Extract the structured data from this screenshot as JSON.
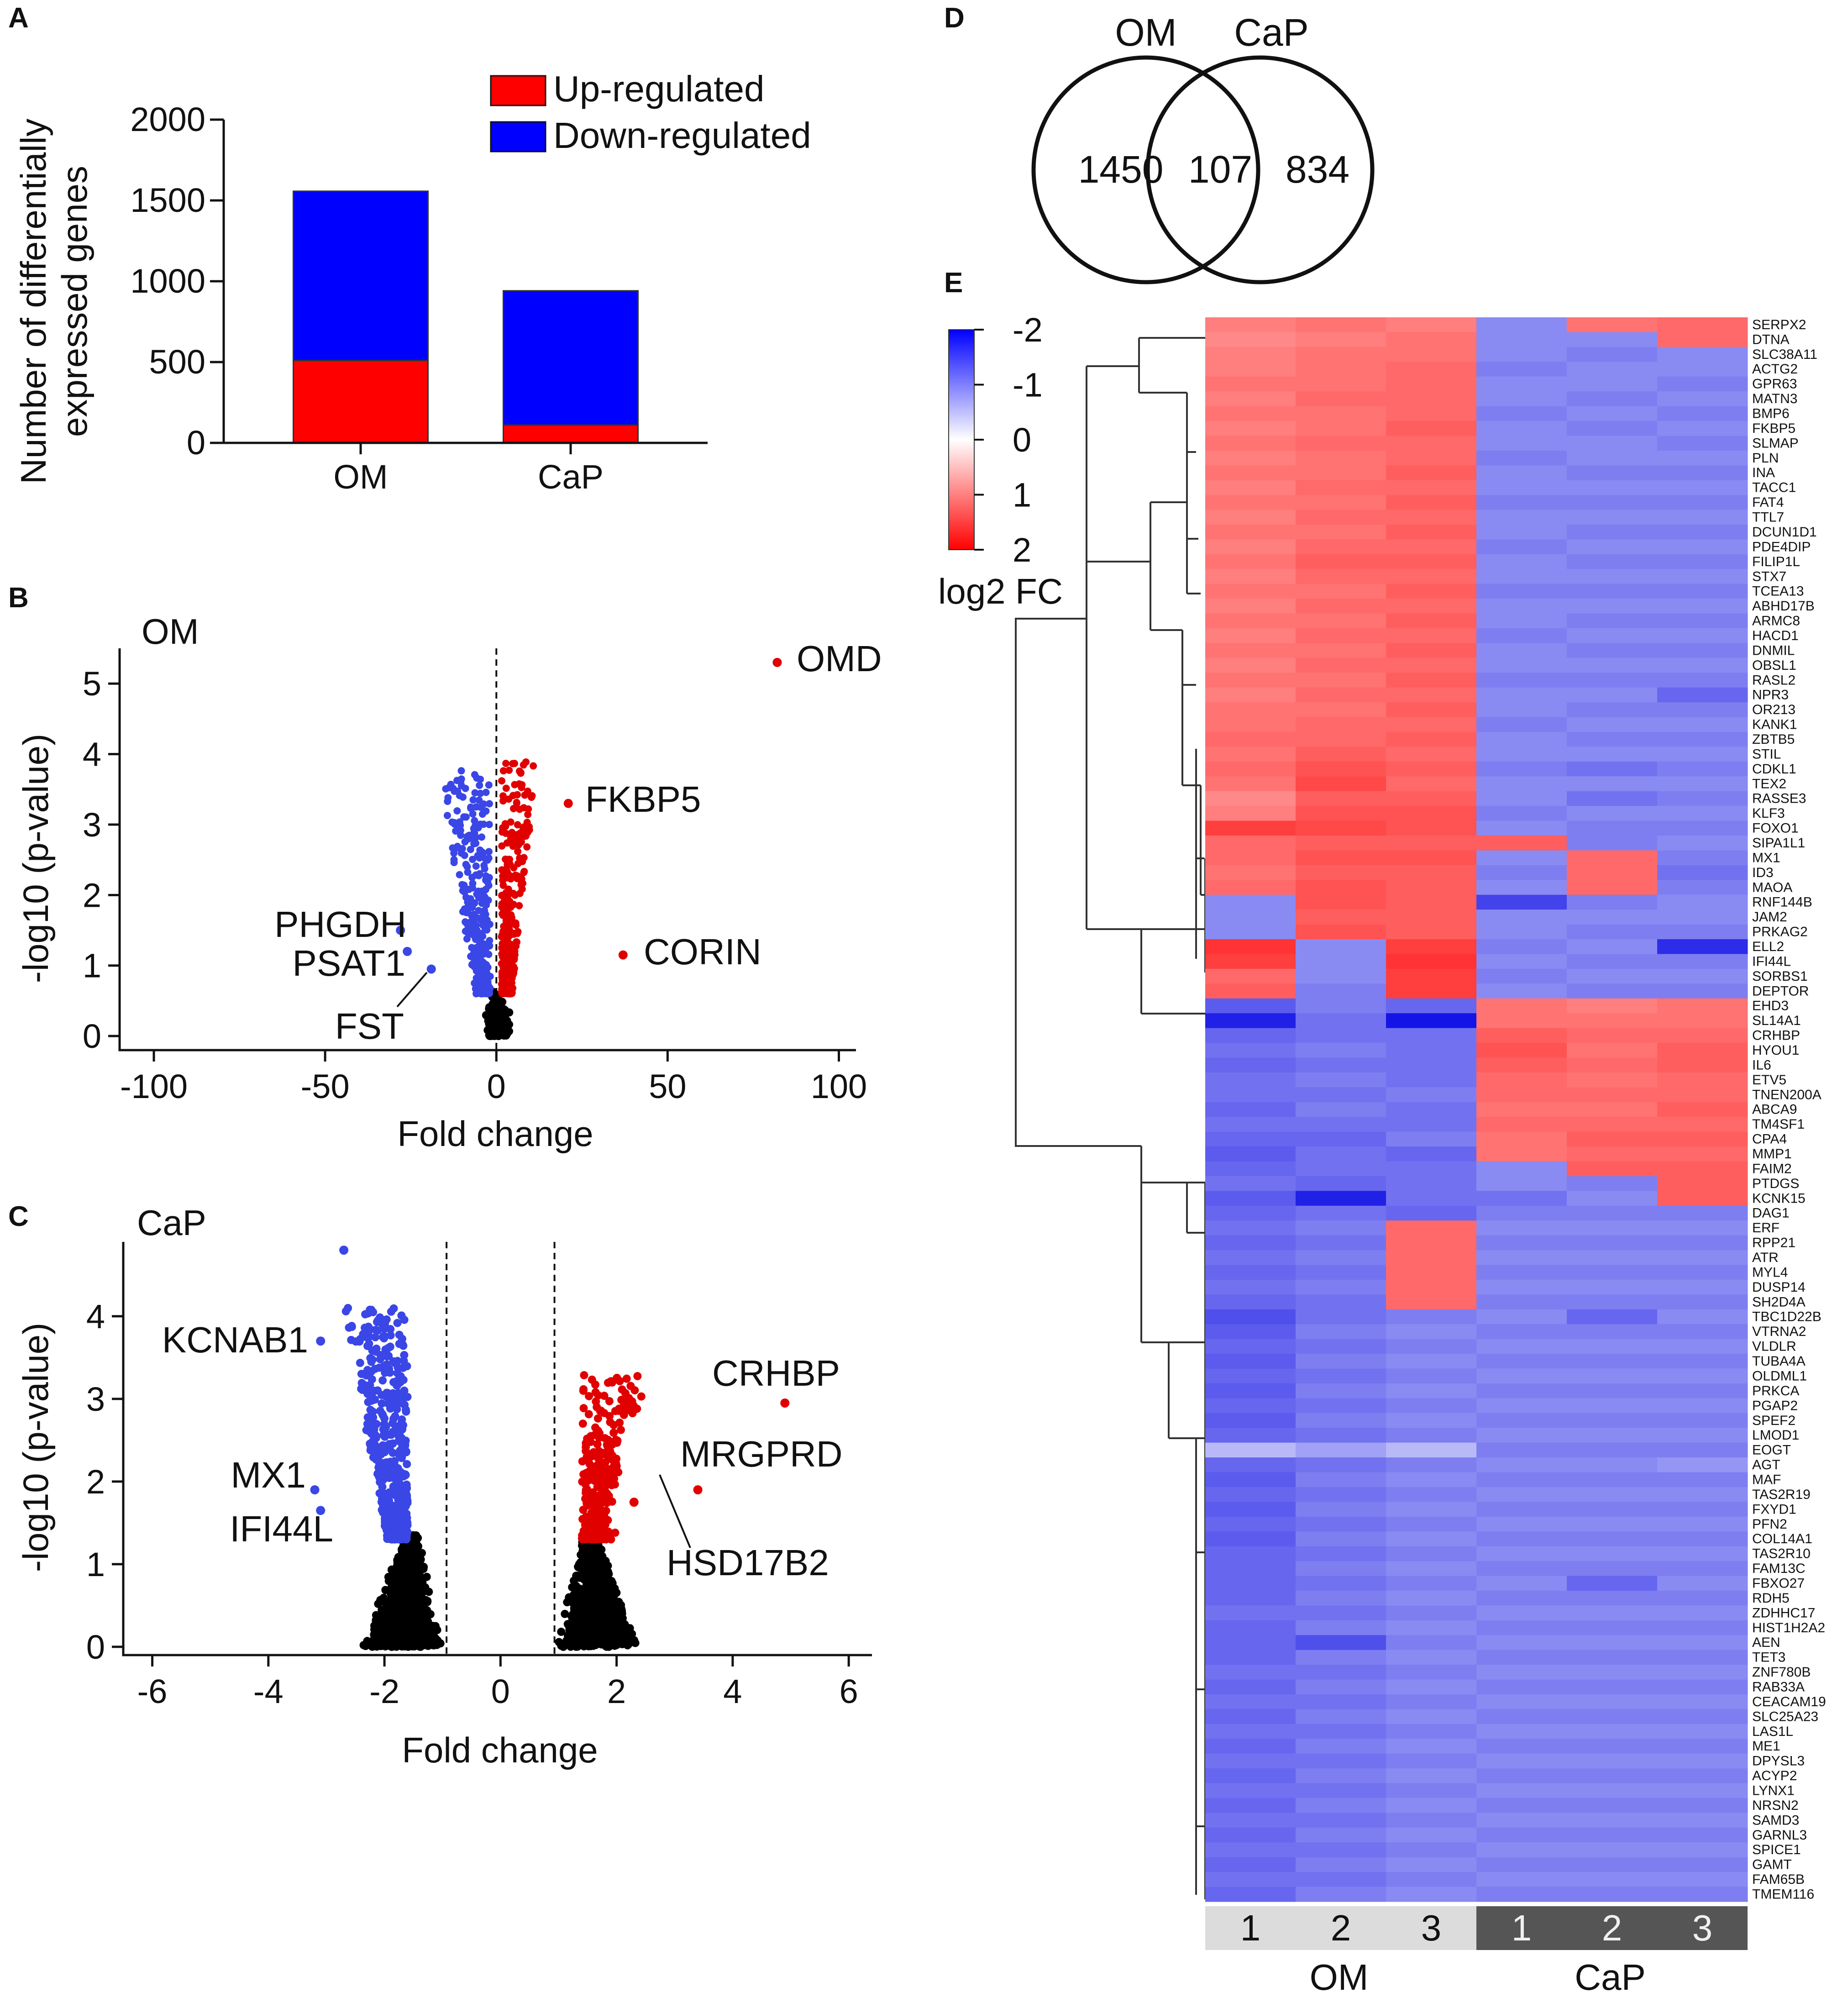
{
  "colors": {
    "up": "#ff0000",
    "down": "#0000ff",
    "volcano_up": "#e00000",
    "volcano_down": "#3a46e6",
    "volcano_ns": "#000000",
    "hm_high": "#ff3333",
    "hm_mid": "#ffffff",
    "hm_low": "#1f1fe6",
    "grp_om": "#dcdcdc",
    "grp_cap": "#555555"
  },
  "panels": {
    "A": "A",
    "B": "B",
    "C": "C",
    "D": "D",
    "E": "E"
  },
  "chart_data": [
    {
      "id": "A",
      "type": "bar",
      "stacked": true,
      "categories": [
        "OM",
        "CaP"
      ],
      "series": [
        {
          "name": "Up-regulated",
          "values": [
            510,
            110
          ]
        },
        {
          "name": "Down-regulated",
          "values": [
            1047,
            831
          ]
        }
      ],
      "ylabel_line1": "Number of differentially",
      "ylabel_line2": "expressed genes",
      "ylim": [
        0,
        2000
      ],
      "yticks": [
        "0",
        "500",
        "1000",
        "1500",
        "2000"
      ],
      "legend": [
        "Up-regulated",
        "Down-regulated"
      ],
      "legend_position": "top-right"
    },
    {
      "id": "B",
      "type": "scatter",
      "title": "OM",
      "xlabel": "Fold change",
      "ylabel": "-log10 (p-value)",
      "xlim": [
        -110,
        105
      ],
      "ylim": [
        -0.2,
        5.5
      ],
      "xticks": [
        "-100",
        "-50",
        "0",
        "50",
        "100"
      ],
      "yticks": [
        "0",
        "1",
        "2",
        "3",
        "4",
        "5"
      ],
      "threshold_x": [
        0
      ],
      "labeled_points": [
        {
          "label": "OMD",
          "x": 82,
          "y": 5.3,
          "dir": "up"
        },
        {
          "label": "FKBP5",
          "x": 21,
          "y": 3.3,
          "dir": "up"
        },
        {
          "label": "CORIN",
          "x": 37,
          "y": 1.15,
          "dir": "up"
        },
        {
          "label": "PHGDH",
          "x": -28,
          "y": 1.5,
          "dir": "down"
        },
        {
          "label": "PSAT1",
          "x": -26,
          "y": 1.2,
          "dir": "down"
        },
        {
          "label": "FST",
          "x": -19,
          "y": 0.95,
          "dir": "down"
        }
      ]
    },
    {
      "id": "C",
      "type": "scatter",
      "title": "CaP",
      "xlabel": "Fold change",
      "ylabel": "-log10 (p-value)",
      "xlim": [
        -6.5,
        6.4
      ],
      "ylim": [
        -0.1,
        4.9
      ],
      "xticks": [
        "-6",
        "-4",
        "-2",
        "0",
        "2",
        "4",
        "6"
      ],
      "yticks": [
        "0",
        "1",
        "2",
        "3",
        "4"
      ],
      "threshold_x": [
        -0.93,
        0.93
      ],
      "labeled_points": [
        {
          "label": "KCNAB1",
          "x": -3.1,
          "y": 3.7,
          "dir": "down"
        },
        {
          "label": "MX1",
          "x": -3.2,
          "y": 1.9,
          "dir": "down"
        },
        {
          "label": "IFI44L",
          "x": -3.1,
          "y": 1.65,
          "dir": "down"
        },
        {
          "label": "CRHBP",
          "x": 4.9,
          "y": 2.95,
          "dir": "up"
        },
        {
          "label": "MRGPRD",
          "x": 3.4,
          "y": 1.9,
          "dir": "up"
        },
        {
          "label": "HSD17B2",
          "x": 2.3,
          "y": 1.75,
          "dir": "up"
        }
      ]
    },
    {
      "id": "D",
      "type": "venn",
      "sets": [
        "OM",
        "CaP"
      ],
      "counts": {
        "OM_only": 1450,
        "both": 107,
        "CaP_only": 834
      }
    },
    {
      "id": "E",
      "type": "heatmap",
      "legend_title": "log2 FC",
      "scale_ticks": [
        "-2",
        "-1",
        "0",
        "1",
        "2"
      ],
      "columns": [
        "1",
        "2",
        "3",
        "1",
        "2",
        "3"
      ],
      "groups": [
        {
          "name": "OM",
          "span": 3
        },
        {
          "name": "CaP",
          "span": 3
        }
      ],
      "genes": [
        "SERPX2",
        "DTNA",
        "SLC38A11",
        "ACTG2",
        "GPR63",
        "MATN3",
        "BMP6",
        "FKBP5",
        "SLMAP",
        "PLN",
        "INA",
        "TACC1",
        "FAT4",
        "TTL7",
        "DCUN1D1",
        "PDE4DIP",
        "FILIP1L",
        "STX7",
        "TCEA13",
        "ABHD17B",
        "ARMC8",
        "HACD1",
        "DNMIL",
        "OBSL1",
        "RASL2",
        "NPR3",
        "OR213",
        "KANK1",
        "ZBTB5",
        "STIL",
        "CDKL1",
        "TEX2",
        "RASSE3",
        "KLF3",
        "FOXO1",
        "SIPA1L1",
        "MX1",
        "ID3",
        "MAOA",
        "RNF144B",
        "JAM2",
        "PRKAG2",
        "ELL2",
        "IFI44L",
        "SORBS1",
        "DEPTOR",
        "EHD3",
        "SL14A1",
        "CRHBP",
        "HYOU1",
        "IL6",
        "ETV5",
        "TNEN200A",
        "ABCA9",
        "TM4SF1",
        "CPA4",
        "MMP1",
        "FAIM2",
        "PTDGS",
        "KCNK15",
        "DAG1",
        "ERF",
        "RPP21",
        "ATR",
        "MYL4",
        "DUSP14",
        "SH2D4A",
        "TBC1D22B",
        "VTRNA2",
        "VLDLR",
        "TUBA4A",
        "OLDML1",
        "PRKCA",
        "PGAP2",
        "SPEF2",
        "LMOD1",
        "EOGT",
        "AGT",
        "MAF",
        "TAS2R19",
        "FXYD1",
        "PFN2",
        "COL14A1",
        "TAS2R10",
        "FAM13C",
        "FBXO27",
        "RDH5",
        "ZDHHC17",
        "HIST1H2A2",
        "AEN",
        "TET3",
        "ZNF780B",
        "RAB33A",
        "CEACAM19",
        "SLC25A23",
        "LAS1L",
        "ME1",
        "DPYSL3",
        "ACYP2",
        "LYNX1",
        "NRSN2",
        "SAMD3",
        "GARNL3",
        "SPICE1",
        "GAMT",
        "FAM65B",
        "TMEM116"
      ],
      "values": [
        [
          1.2,
          1.3,
          1.2,
          -1.0,
          1.3,
          1.4
        ],
        [
          1.1,
          1.2,
          1.3,
          -1.0,
          -1.0,
          1.4
        ],
        [
          1.2,
          1.3,
          1.3,
          -1.0,
          -1.1,
          -1.0
        ],
        [
          1.2,
          1.3,
          1.4,
          -1.1,
          -1.0,
          -1.0
        ],
        [
          1.3,
          1.3,
          1.4,
          -1.0,
          -1.0,
          -1.1
        ],
        [
          1.2,
          1.4,
          1.4,
          -1.0,
          -1.1,
          -1.0
        ],
        [
          1.3,
          1.3,
          1.4,
          -1.1,
          -1.0,
          -1.1
        ],
        [
          1.2,
          1.3,
          1.5,
          -1.0,
          -1.1,
          -1.0
        ],
        [
          1.3,
          1.4,
          1.4,
          -1.0,
          -1.0,
          -1.1
        ],
        [
          1.2,
          1.3,
          1.4,
          -1.1,
          -1.0,
          -1.0
        ],
        [
          1.3,
          1.3,
          1.5,
          -1.0,
          -1.1,
          -1.1
        ],
        [
          1.2,
          1.4,
          1.4,
          -1.0,
          -1.0,
          -1.0
        ],
        [
          1.3,
          1.3,
          1.5,
          -1.1,
          -1.1,
          -1.1
        ],
        [
          1.2,
          1.4,
          1.4,
          -1.0,
          -1.0,
          -1.0
        ],
        [
          1.3,
          1.3,
          1.5,
          -1.0,
          -1.1,
          -1.1
        ],
        [
          1.2,
          1.4,
          1.4,
          -1.1,
          -1.0,
          -1.0
        ],
        [
          1.3,
          1.5,
          1.5,
          -1.0,
          -1.1,
          -1.1
        ],
        [
          1.2,
          1.4,
          1.4,
          -1.0,
          -1.0,
          -1.0
        ],
        [
          1.3,
          1.3,
          1.5,
          -1.1,
          -1.1,
          -1.1
        ],
        [
          1.2,
          1.4,
          1.4,
          -1.0,
          -1.0,
          -1.0
        ],
        [
          1.3,
          1.3,
          1.5,
          -1.0,
          -1.1,
          -1.1
        ],
        [
          1.2,
          1.4,
          1.4,
          -1.1,
          -1.0,
          -1.0
        ],
        [
          1.3,
          1.3,
          1.5,
          -1.0,
          -1.1,
          -1.1
        ],
        [
          1.2,
          1.4,
          1.4,
          -1.0,
          -1.0,
          -1.0
        ],
        [
          1.3,
          1.3,
          1.5,
          -1.1,
          -1.1,
          -1.1
        ],
        [
          1.2,
          1.4,
          1.4,
          -1.0,
          -1.0,
          -1.3
        ],
        [
          1.3,
          1.3,
          1.5,
          -1.0,
          -1.1,
          -1.1
        ],
        [
          1.3,
          1.4,
          1.4,
          -1.1,
          -1.0,
          -1.0
        ],
        [
          1.4,
          1.4,
          1.5,
          -1.0,
          -1.1,
          -1.1
        ],
        [
          1.3,
          1.5,
          1.4,
          -1.0,
          -1.0,
          -1.0
        ],
        [
          1.4,
          1.6,
          1.5,
          -1.1,
          -1.2,
          -1.1
        ],
        [
          1.3,
          1.7,
          1.4,
          -1.0,
          -1.0,
          -1.0
        ],
        [
          1.1,
          1.5,
          1.5,
          -1.0,
          -1.2,
          -1.1
        ],
        [
          1.2,
          1.6,
          1.6,
          -1.1,
          -1.0,
          -1.0
        ],
        [
          1.8,
          1.7,
          1.6,
          -1.0,
          -1.1,
          -1.1
        ],
        [
          1.4,
          1.5,
          1.5,
          1.5,
          -1.1,
          -1.0
        ],
        [
          1.4,
          1.6,
          1.6,
          -1.0,
          1.4,
          -1.1
        ],
        [
          1.3,
          1.5,
          1.5,
          -1.1,
          1.4,
          -1.2
        ],
        [
          1.4,
          1.6,
          1.5,
          -1.0,
          1.4,
          -1.1
        ],
        [
          -1.0,
          1.6,
          1.5,
          -1.6,
          -1.1,
          -1.0
        ],
        [
          -1.0,
          1.5,
          1.5,
          -1.0,
          -1.0,
          -1.0
        ],
        [
          -1.0,
          1.6,
          1.5,
          -1.0,
          -1.1,
          -1.1
        ],
        [
          1.9,
          -1.0,
          1.8,
          -1.1,
          -1.0,
          -1.8
        ],
        [
          1.8,
          -1.0,
          1.9,
          -1.0,
          -1.1,
          -1.1
        ],
        [
          1.4,
          -1.0,
          1.8,
          -1.1,
          -1.0,
          -1.0
        ],
        [
          1.5,
          -1.1,
          1.8,
          -1.0,
          -1.1,
          -1.1
        ],
        [
          -1.4,
          -1.1,
          -1.3,
          1.3,
          1.2,
          1.3
        ],
        [
          -1.9,
          -1.2,
          -2.0,
          1.3,
          1.3,
          1.3
        ],
        [
          -1.3,
          -1.2,
          -1.2,
          1.5,
          1.4,
          1.4
        ],
        [
          -1.2,
          -1.1,
          -1.2,
          1.6,
          1.3,
          1.5
        ],
        [
          -1.3,
          -1.2,
          -1.2,
          1.5,
          1.4,
          1.5
        ],
        [
          -1.2,
          -1.1,
          -1.2,
          1.4,
          1.3,
          1.4
        ],
        [
          -1.2,
          -1.2,
          -1.1,
          1.4,
          1.4,
          1.4
        ],
        [
          -1.3,
          -1.1,
          -1.2,
          1.3,
          1.3,
          1.5
        ],
        [
          -1.2,
          -1.2,
          -1.2,
          1.4,
          1.4,
          1.4
        ],
        [
          -1.3,
          -1.3,
          -1.1,
          1.3,
          1.5,
          1.5
        ],
        [
          -1.4,
          -1.2,
          -1.3,
          1.3,
          1.4,
          1.4
        ],
        [
          -1.3,
          -1.2,
          -1.2,
          -1.0,
          1.5,
          1.5
        ],
        [
          -1.2,
          -1.3,
          -1.2,
          -1.0,
          -1.1,
          1.5
        ],
        [
          -1.4,
          -1.9,
          -1.2,
          -1.2,
          -1.0,
          1.5
        ],
        [
          -1.3,
          -1.2,
          -1.3,
          -1.1,
          -1.1,
          -1.1
        ],
        [
          -1.2,
          -1.1,
          1.4,
          -1.0,
          -1.0,
          -1.0
        ],
        [
          -1.3,
          -1.2,
          1.4,
          -1.1,
          -1.1,
          -1.1
        ],
        [
          -1.2,
          -1.1,
          1.4,
          -1.0,
          -1.0,
          -1.0
        ],
        [
          -1.3,
          -1.2,
          1.4,
          -1.1,
          -1.1,
          -1.1
        ],
        [
          -1.2,
          -1.1,
          1.4,
          -1.0,
          -1.0,
          -1.0
        ],
        [
          -1.3,
          -1.2,
          1.4,
          -1.1,
          -1.1,
          -1.1
        ],
        [
          -1.5,
          -1.2,
          -1.1,
          -1.0,
          -1.3,
          -1.0
        ],
        [
          -1.4,
          -1.1,
          -1.0,
          -1.1,
          -1.1,
          -1.1
        ],
        [
          -1.3,
          -1.2,
          -1.1,
          -1.0,
          -1.0,
          -1.0
        ],
        [
          -1.4,
          -1.1,
          -1.0,
          -1.1,
          -1.1,
          -1.1
        ],
        [
          -1.3,
          -1.2,
          -1.1,
          -1.0,
          -1.0,
          -1.0
        ],
        [
          -1.4,
          -1.1,
          -1.0,
          -1.1,
          -1.1,
          -1.1
        ],
        [
          -1.3,
          -1.2,
          -1.1,
          -1.0,
          -1.0,
          -1.0
        ],
        [
          -1.4,
          -1.1,
          -1.0,
          -1.1,
          -1.1,
          -1.1
        ],
        [
          -1.3,
          -1.2,
          -1.1,
          -1.0,
          -1.0,
          -1.0
        ],
        [
          -0.6,
          -0.8,
          -0.6,
          -1.1,
          -1.1,
          -1.1
        ],
        [
          -1.3,
          -1.2,
          -1.1,
          -1.0,
          -1.0,
          -0.9
        ],
        [
          -1.4,
          -1.1,
          -1.0,
          -1.1,
          -1.1,
          -1.1
        ],
        [
          -1.3,
          -1.2,
          -1.1,
          -1.0,
          -1.0,
          -1.0
        ],
        [
          -1.4,
          -1.1,
          -1.0,
          -1.1,
          -1.1,
          -1.1
        ],
        [
          -1.3,
          -1.2,
          -1.1,
          -1.0,
          -1.0,
          -1.0
        ],
        [
          -1.4,
          -1.1,
          -1.0,
          -1.1,
          -1.1,
          -1.1
        ],
        [
          -1.3,
          -1.2,
          -1.1,
          -1.0,
          -1.0,
          -1.0
        ],
        [
          -1.3,
          -1.1,
          -1.0,
          -1.1,
          -1.1,
          -1.1
        ],
        [
          -1.3,
          -1.2,
          -1.1,
          -1.0,
          -1.3,
          -1.0
        ],
        [
          -1.3,
          -1.1,
          -1.0,
          -1.1,
          -1.1,
          -1.1
        ],
        [
          -1.2,
          -1.2,
          -1.1,
          -1.0,
          -1.0,
          -1.0
        ],
        [
          -1.3,
          -1.1,
          -1.0,
          -1.1,
          -1.1,
          -1.1
        ],
        [
          -1.3,
          -1.5,
          -1.1,
          -1.0,
          -1.0,
          -1.0
        ],
        [
          -1.3,
          -1.1,
          -1.0,
          -1.1,
          -1.1,
          -1.1
        ],
        [
          -1.2,
          -1.2,
          -1.1,
          -1.0,
          -1.0,
          -1.0
        ],
        [
          -1.3,
          -1.1,
          -1.0,
          -1.1,
          -1.1,
          -1.1
        ],
        [
          -1.2,
          -1.2,
          -1.1,
          -1.0,
          -1.0,
          -1.0
        ],
        [
          -1.3,
          -1.1,
          -1.0,
          -1.1,
          -1.1,
          -1.1
        ],
        [
          -1.2,
          -1.2,
          -1.1,
          -1.0,
          -1.0,
          -1.0
        ],
        [
          -1.3,
          -1.1,
          -1.0,
          -1.1,
          -1.1,
          -1.1
        ],
        [
          -1.2,
          -1.2,
          -1.1,
          -1.0,
          -1.0,
          -1.0
        ],
        [
          -1.3,
          -1.1,
          -1.0,
          -1.1,
          -1.1,
          -1.1
        ],
        [
          -1.2,
          -1.2,
          -1.1,
          -1.0,
          -1.0,
          -1.0
        ],
        [
          -1.3,
          -1.1,
          -1.0,
          -1.1,
          -1.1,
          -1.1
        ],
        [
          -1.2,
          -1.2,
          -1.1,
          -1.0,
          -1.0,
          -1.0
        ],
        [
          -1.3,
          -1.1,
          -1.0,
          -1.1,
          -1.1,
          -1.1
        ],
        [
          -1.2,
          -1.2,
          -1.1,
          -1.0,
          -1.0,
          -1.0
        ],
        [
          -1.3,
          -1.1,
          -1.0,
          -1.1,
          -1.1,
          -1.1
        ],
        [
          -1.2,
          -1.2,
          -1.1,
          -1.0,
          -1.0,
          -1.0
        ],
        [
          -1.3,
          -1.1,
          -1.0,
          -1.1,
          -1.1,
          -1.1
        ]
      ]
    }
  ]
}
